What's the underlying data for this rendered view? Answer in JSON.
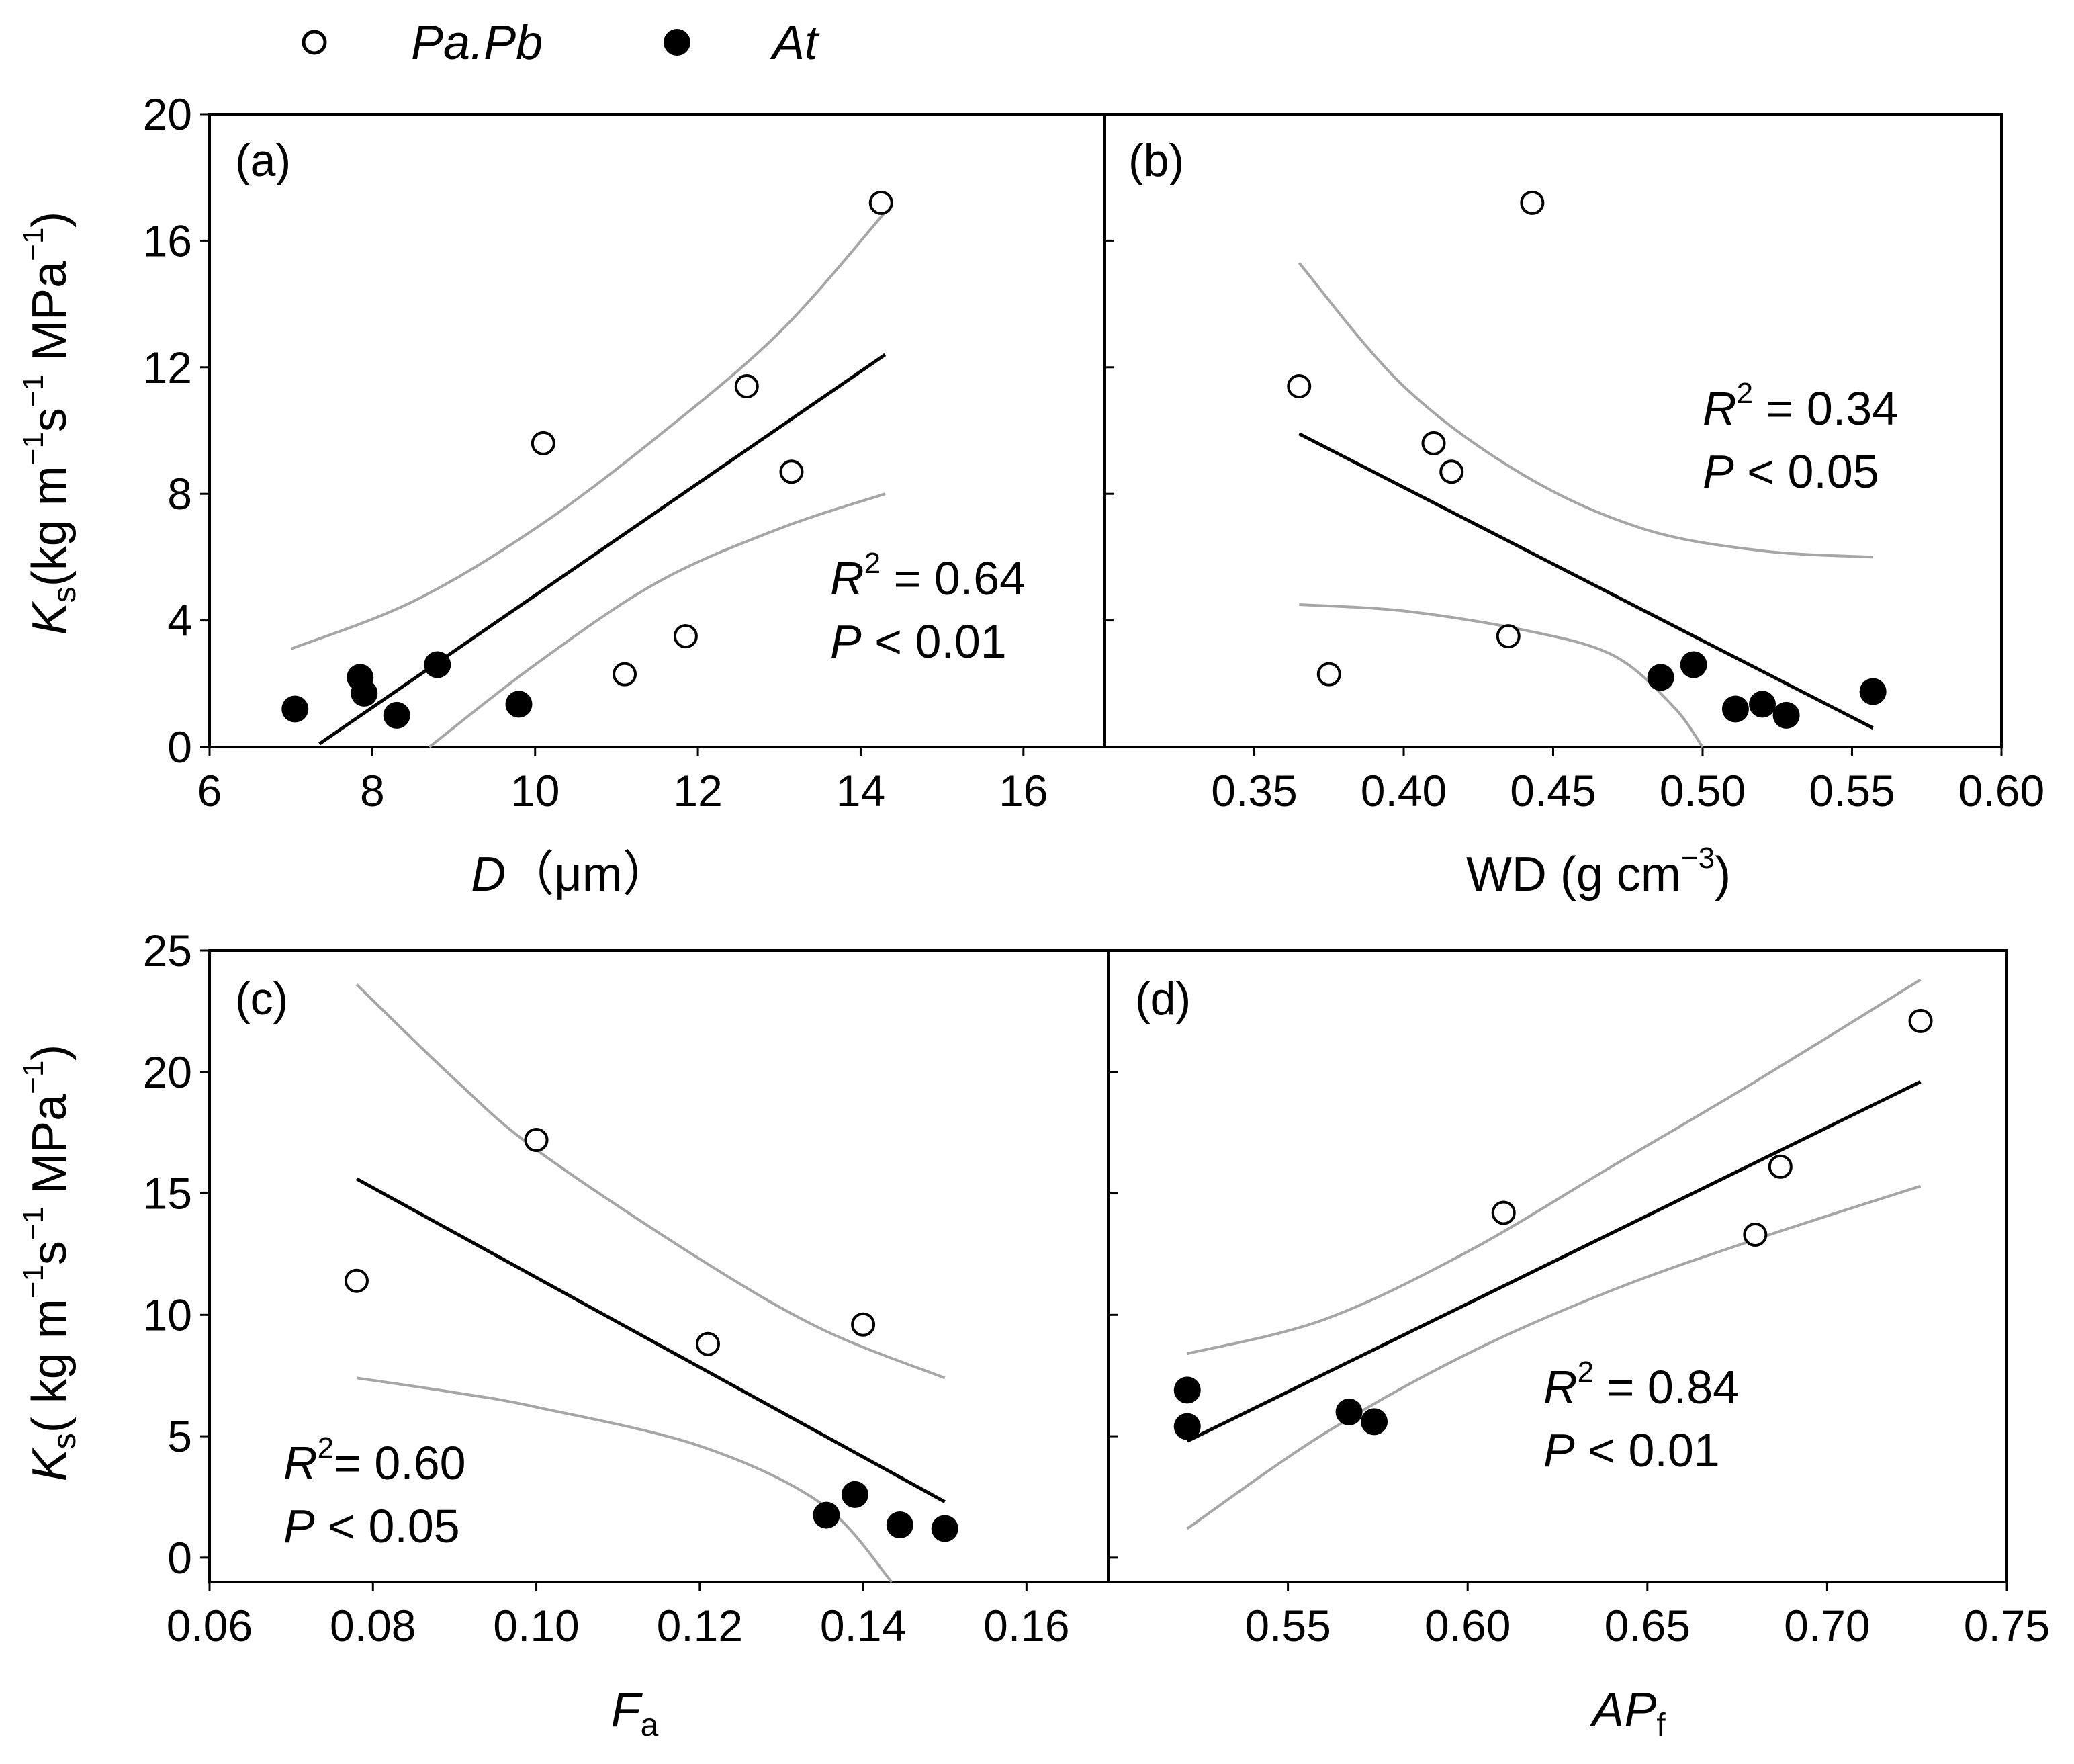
{
  "legend": [
    {
      "label": "Pa.Pb",
      "marker": "open-circle"
    },
    {
      "label": "At",
      "marker": "filled-circle"
    }
  ],
  "colors": {
    "axis": "#000000",
    "fit_line": "#000000",
    "ci_band": "#a6a6a6",
    "open_fill": "#ffffff",
    "filled": "#000000"
  },
  "shared_ylabels": {
    "top": {
      "main": "K",
      "sub": "s",
      "rest1": "(kg  m",
      "sup1": "−1",
      "rest2": "s",
      "sup2": "−1",
      "rest3": " MPa",
      "sup3": "−1",
      "close": ")"
    },
    "bottom": {
      "main": "K",
      "sub": "s",
      "rest1": "( kg m",
      "sup1": "−1",
      "rest2": "s",
      "sup2": "−1",
      "rest3": " MPa",
      "sup3": "−1",
      "close": ")"
    }
  },
  "chart_data": [
    {
      "id": "a",
      "type": "scatter",
      "panel_label": "(a)",
      "xlabel": {
        "main": "D",
        "rest": "（μm）"
      },
      "xlim": [
        6,
        17
      ],
      "ylim": [
        0,
        20
      ],
      "xticks": [
        "6",
        "8",
        "10",
        "12",
        "14",
        "16"
      ],
      "yticks": [
        "0",
        "4",
        "8",
        "12",
        "16",
        "20"
      ],
      "stats": {
        "r2_label": "R",
        "r2_value": " = 0.64",
        "p_label": "P",
        "p_value": " < 0.01"
      },
      "series": [
        {
          "name": "Pa.Pb",
          "points": [
            [
              10.1,
              9.6
            ],
            [
              11.1,
              2.3
            ],
            [
              11.85,
              3.5
            ],
            [
              12.6,
              11.4
            ],
            [
              13.15,
              8.7
            ],
            [
              14.25,
              17.2
            ]
          ]
        },
        {
          "name": "At",
          "points": [
            [
              7.05,
              1.2
            ],
            [
              7.85,
              2.2
            ],
            [
              7.9,
              1.7
            ],
            [
              8.3,
              1.0
            ],
            [
              8.8,
              2.6
            ],
            [
              9.8,
              1.35
            ]
          ]
        }
      ],
      "fit": [
        [
          7.35,
          0.1
        ],
        [
          14.3,
          12.4
        ]
      ],
      "ci_upper": [
        [
          7.0,
          3.1
        ],
        [
          8.5,
          4.6
        ],
        [
          10.0,
          6.9
        ],
        [
          11.5,
          9.8
        ],
        [
          13.0,
          13.1
        ],
        [
          14.3,
          16.9
        ]
      ],
      "ci_lower": [
        [
          8.7,
          0.0
        ],
        [
          10.0,
          2.6
        ],
        [
          11.5,
          5.2
        ],
        [
          13.0,
          6.9
        ],
        [
          14.3,
          8.0
        ]
      ]
    },
    {
      "id": "b",
      "type": "scatter",
      "panel_label": "(b)",
      "xlabel": {
        "main": "WD (g cm",
        "sup": "−3",
        "close": ")"
      },
      "xlim": [
        0.3,
        0.6
      ],
      "ylim": [
        0,
        20
      ],
      "xticks": [
        "0.35",
        "0.40",
        "0.45",
        "0.50",
        "0.55",
        "0.60"
      ],
      "yticks": [],
      "stats": {
        "r2_label": "R",
        "r2_value": " = 0.34",
        "p_label": "P",
        "p_value": " < 0.05"
      },
      "series": [
        {
          "name": "Pa.Pb",
          "points": [
            [
              0.365,
              11.4
            ],
            [
              0.375,
              2.3
            ],
            [
              0.41,
              9.6
            ],
            [
              0.416,
              8.7
            ],
            [
              0.435,
              3.5
            ],
            [
              0.443,
              17.2
            ]
          ]
        },
        {
          "name": "At",
          "points": [
            [
              0.486,
              2.2
            ],
            [
              0.497,
              2.6
            ],
            [
              0.511,
              1.2
            ],
            [
              0.52,
              1.35
            ],
            [
              0.528,
              1.0
            ],
            [
              0.557,
              1.75
            ]
          ]
        }
      ],
      "fit": [
        [
          0.365,
          9.9
        ],
        [
          0.557,
          0.6
        ]
      ],
      "ci_upper": [
        [
          0.365,
          15.3
        ],
        [
          0.4,
          11.4
        ],
        [
          0.44,
          8.6
        ],
        [
          0.48,
          6.9
        ],
        [
          0.52,
          6.2
        ],
        [
          0.557,
          6.0
        ]
      ],
      "ci_lower": [
        [
          0.365,
          4.5
        ],
        [
          0.4,
          4.3
        ],
        [
          0.44,
          3.7
        ],
        [
          0.47,
          2.9
        ],
        [
          0.49,
          1.3
        ],
        [
          0.5,
          0.0
        ]
      ]
    },
    {
      "id": "c",
      "type": "scatter",
      "panel_label": "(c)",
      "xlabel": {
        "main": "F",
        "sub": "a"
      },
      "xlim": [
        0.06,
        0.17
      ],
      "ylim": [
        -1,
        25
      ],
      "xticks": [
        "0.06",
        "0.08",
        "0.10",
        "0.12",
        "0.14",
        "0.16"
      ],
      "yticks": [
        "0",
        "5",
        "10",
        "15",
        "20",
        "25"
      ],
      "stats": {
        "r2_label": "R",
        "r2_value": "= 0.60",
        "p_label": "P",
        "p_value": " < 0.05"
      },
      "series": [
        {
          "name": "Pa.Pb",
          "points": [
            [
              0.078,
              11.4
            ],
            [
              0.1,
              17.2
            ],
            [
              0.121,
              8.8
            ],
            [
              0.14,
              9.6
            ]
          ]
        },
        {
          "name": "At",
          "points": [
            [
              0.1355,
              1.75
            ],
            [
              0.139,
              2.6
            ],
            [
              0.1445,
              1.35
            ],
            [
              0.15,
              1.2
            ]
          ]
        }
      ],
      "fit": [
        [
          0.078,
          15.6
        ],
        [
          0.15,
          2.3
        ]
      ],
      "ci_upper": [
        [
          0.078,
          23.6
        ],
        [
          0.09,
          19.7
        ],
        [
          0.1,
          16.8
        ],
        [
          0.12,
          12.3
        ],
        [
          0.135,
          9.4
        ],
        [
          0.15,
          7.4
        ]
      ],
      "ci_lower": [
        [
          0.078,
          7.4
        ],
        [
          0.09,
          6.8
        ],
        [
          0.1,
          6.2
        ],
        [
          0.12,
          4.6
        ],
        [
          0.135,
          2.2
        ],
        [
          0.1435,
          -1.0
        ]
      ]
    },
    {
      "id": "d",
      "type": "scatter",
      "panel_label": "(d)",
      "xlabel": {
        "main": "AP",
        "sub": "f"
      },
      "xlim": [
        0.5,
        0.75
      ],
      "ylim": [
        -1,
        25
      ],
      "xticks": [
        "0.55",
        "0.60",
        "0.65",
        "0.70",
        "0.75"
      ],
      "yticks": [],
      "stats": {
        "r2_label": "R",
        "r2_value": " = 0.84",
        "p_label": "P",
        "p_value": " < 0.01"
      },
      "series": [
        {
          "name": "Pa.Pb",
          "points": [
            [
              0.61,
              14.2
            ],
            [
              0.68,
              13.3
            ],
            [
              0.687,
              16.1
            ],
            [
              0.726,
              22.1
            ]
          ]
        },
        {
          "name": "At",
          "points": [
            [
              0.522,
              6.9
            ],
            [
              0.522,
              5.4
            ],
            [
              0.567,
              6.0
            ],
            [
              0.574,
              5.6
            ]
          ]
        }
      ],
      "fit": [
        [
          0.522,
          4.8
        ],
        [
          0.726,
          19.6
        ]
      ],
      "ci_upper": [
        [
          0.522,
          8.4
        ],
        [
          0.56,
          9.8
        ],
        [
          0.6,
          12.6
        ],
        [
          0.64,
          16.1
        ],
        [
          0.68,
          19.6
        ],
        [
          0.726,
          23.8
        ]
      ],
      "ci_lower": [
        [
          0.522,
          1.2
        ],
        [
          0.56,
          5.1
        ],
        [
          0.6,
          8.4
        ],
        [
          0.64,
          11.0
        ],
        [
          0.68,
          13.1
        ],
        [
          0.726,
          15.3
        ]
      ]
    }
  ]
}
